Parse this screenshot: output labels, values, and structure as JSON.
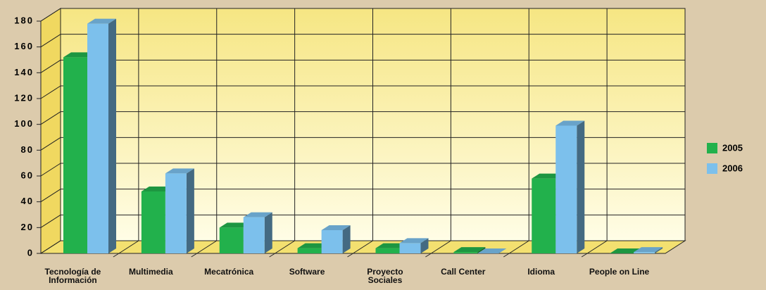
{
  "chart_data": {
    "type": "bar3d",
    "categories": [
      "Tecnología de Información",
      "Multimedia",
      "Mecatrónica",
      "Software",
      "Proyecto Sociales",
      "Call Center",
      "Idioma",
      "People on Line"
    ],
    "series": [
      {
        "name": "2005",
        "color": "#22b14c",
        "values": [
          152,
          48,
          20,
          4,
          4,
          1,
          58,
          0
        ]
      },
      {
        "name": "2006",
        "color": "#7cc0ec",
        "values": [
          178,
          62,
          28,
          18,
          8,
          0,
          99,
          1
        ]
      }
    ],
    "ylim": [
      0,
      180
    ],
    "yticks": [
      0,
      20,
      40,
      60,
      80,
      100,
      120,
      140,
      160,
      180
    ],
    "grid": true,
    "legend": "right"
  }
}
